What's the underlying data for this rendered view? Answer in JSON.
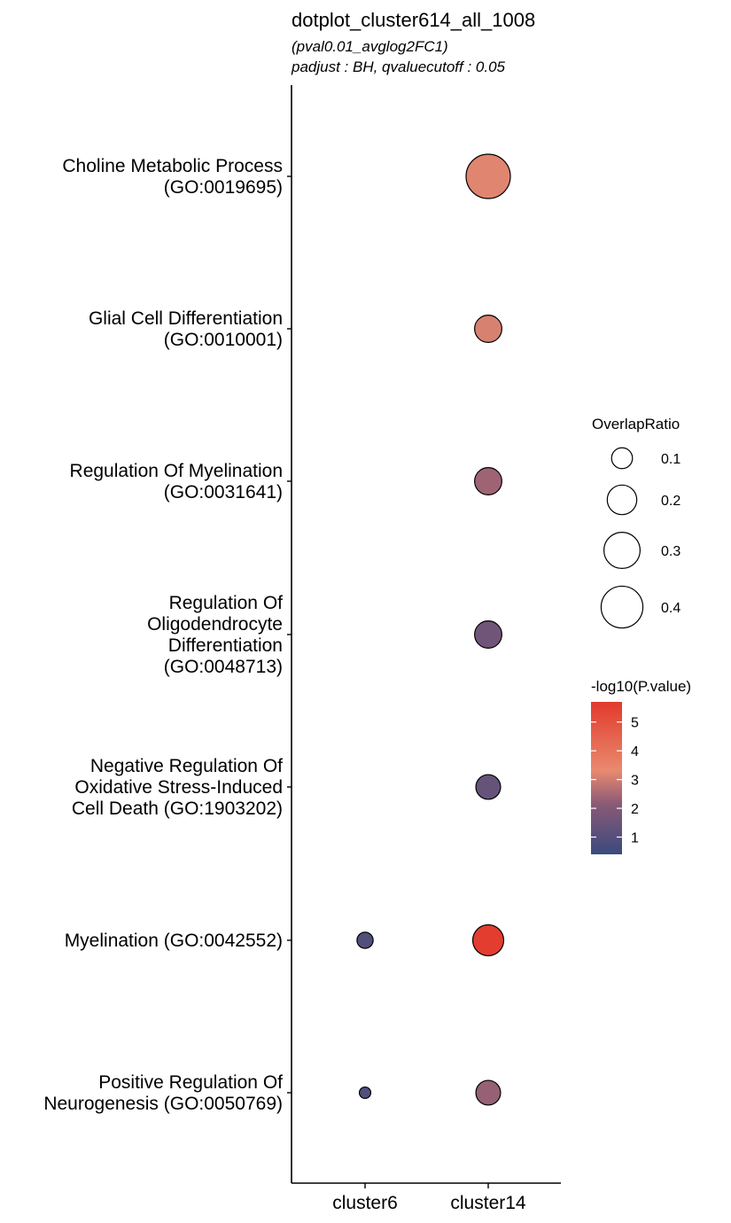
{
  "chart_data": {
    "type": "dotplot",
    "title": "dotplot_cluster614_all_1008",
    "subtitle_lines": [
      "(pval0.01_avglog2FC1)",
      "padjust : BH, qvaluecutoff : 0.05"
    ],
    "categories_x": [
      "cluster6",
      "cluster14"
    ],
    "terms": [
      {
        "lines": [
          "Choline Metabolic Process",
          "(GO:0019695)"
        ]
      },
      {
        "lines": [
          "Glial Cell Differentiation",
          "(GO:0010001)"
        ]
      },
      {
        "lines": [
          "Regulation Of Myelination",
          "(GO:0031641)"
        ]
      },
      {
        "lines": [
          "Regulation Of",
          "Oligodendrocyte",
          "Differentiation",
          "(GO:0048713)"
        ]
      },
      {
        "lines": [
          "Negative Regulation Of",
          "Oxidative Stress-Induced",
          "Cell Death (GO:1903202)"
        ]
      },
      {
        "lines": [
          "Myelination (GO:0042552)"
        ]
      },
      {
        "lines": [
          "Positive Regulation Of",
          "Neurogenesis (GO:0050769)"
        ]
      }
    ],
    "points": [
      {
        "term": 0,
        "cluster": "cluster14",
        "overlap_ratio": 0.45,
        "neglog10p": 3.2
      },
      {
        "term": 1,
        "cluster": "cluster14",
        "overlap_ratio": 0.17,
        "neglog10p": 3.1
      },
      {
        "term": 2,
        "cluster": "cluster14",
        "overlap_ratio": 0.17,
        "neglog10p": 2.4
      },
      {
        "term": 3,
        "cluster": "cluster14",
        "overlap_ratio": 0.17,
        "neglog10p": 1.6
      },
      {
        "term": 4,
        "cluster": "cluster14",
        "overlap_ratio": 0.14,
        "neglog10p": 1.35
      },
      {
        "term": 5,
        "cluster": "cluster6",
        "overlap_ratio": 0.06,
        "neglog10p": 0.9
      },
      {
        "term": 5,
        "cluster": "cluster14",
        "overlap_ratio": 0.22,
        "neglog10p": 5.6
      },
      {
        "term": 6,
        "cluster": "cluster6",
        "overlap_ratio": 0.03,
        "neglog10p": 0.9
      },
      {
        "term": 6,
        "cluster": "cluster14",
        "overlap_ratio": 0.14,
        "neglog10p": 2.3
      }
    ],
    "size_legend": {
      "title": "OverlapRatio",
      "values": [
        0.1,
        0.2,
        0.3,
        0.4
      ],
      "labels": [
        "0.1",
        "0.2",
        "0.3",
        "0.4"
      ]
    },
    "color_legend": {
      "title": "-log10(P.value)",
      "range": [
        0.4,
        5.7
      ],
      "ticks": [
        1,
        2,
        3,
        4,
        5
      ],
      "tick_labels": [
        "1",
        "2",
        "3",
        "4",
        "5"
      ],
      "colors": [
        "#3a4a7e",
        "#8a5a76",
        "#e98a6f",
        "#e23a2c"
      ]
    }
  }
}
